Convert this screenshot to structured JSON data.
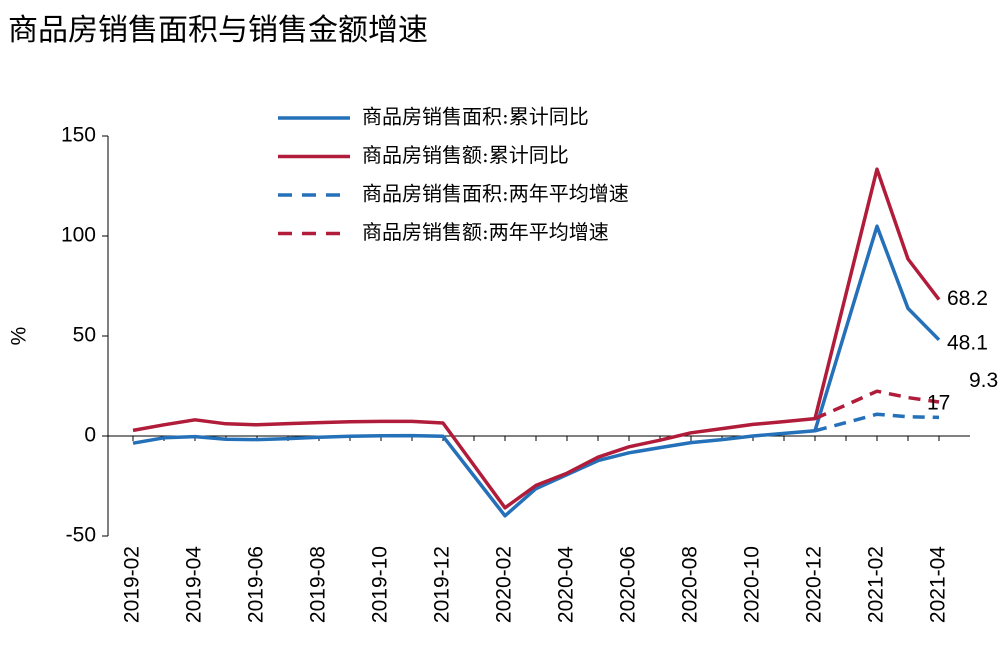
{
  "chart_data": {
    "type": "line",
    "title": "商品房销售面积与销售金额增速",
    "y_label": "%",
    "categories": [
      "2019-02",
      null,
      "2019-04",
      null,
      "2019-06",
      null,
      "2019-08",
      null,
      "2019-10",
      null,
      "2019-12",
      null,
      "2020-02",
      null,
      "2020-04",
      null,
      "2020-06",
      null,
      "2020-08",
      null,
      "2020-10",
      null,
      "2020-12",
      null,
      "2021-02",
      null,
      "2021-04"
    ],
    "series": [
      {
        "name": "商品房销售面积:累计同比",
        "color": "#2470b9",
        "dash": false,
        "values": [
          -3.6,
          -0.9,
          -0.3,
          -1.6,
          -1.8,
          -1.3,
          -0.6,
          -0.1,
          0.1,
          0.2,
          -0.1,
          -20,
          -39.9,
          -26.3,
          -19.3,
          -12.3,
          -8.4,
          -5.8,
          -3.3,
          -1.8,
          0,
          1.3,
          2.6,
          53.8,
          104.9,
          63.8,
          48.1
        ]
      },
      {
        "name": "商品房销售额:累计同比",
        "color": "#b01c3a",
        "dash": false,
        "values": [
          2.8,
          5.6,
          8.1,
          6.1,
          5.6,
          6.2,
          6.7,
          7.1,
          7.3,
          7.3,
          6.5,
          -14.7,
          -35.9,
          -24.7,
          -18.6,
          -10.6,
          -5.4,
          -2.1,
          1.6,
          3.7,
          5.8,
          7.2,
          8.7,
          71,
          133.4,
          88.5,
          68.2
        ]
      },
      {
        "name": "商品房销售面积:两年平均增速",
        "color": "#2470b9",
        "dash": true,
        "values": [
          null,
          null,
          null,
          null,
          null,
          null,
          null,
          null,
          null,
          null,
          null,
          null,
          null,
          null,
          null,
          null,
          null,
          null,
          null,
          null,
          null,
          null,
          2.6,
          6.7,
          10.9,
          9.6,
          9.3
        ]
      },
      {
        "name": "商品房销售额:两年平均增速",
        "color": "#b01c3a",
        "dash": true,
        "values": [
          null,
          null,
          null,
          null,
          null,
          null,
          null,
          null,
          null,
          null,
          null,
          null,
          null,
          null,
          null,
          null,
          null,
          null,
          null,
          null,
          null,
          null,
          8.7,
          15.5,
          22.4,
          19.2,
          17
        ]
      }
    ],
    "ylim": [
      -50,
      150
    ],
    "yticks": [
      -50,
      0,
      50,
      100,
      150
    ]
  }
}
